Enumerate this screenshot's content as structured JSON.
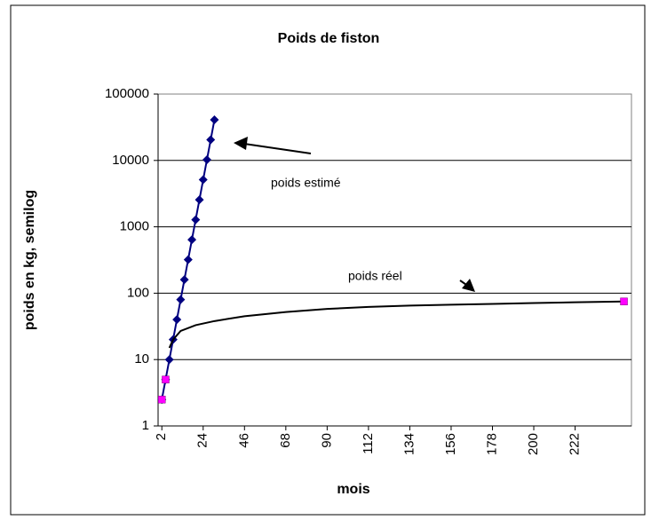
{
  "chart_data": {
    "type": "line",
    "title": "Poids de fiston",
    "x_label": "mois",
    "y_label": "poids en kg, semilog",
    "annotations": [
      "poids estimé",
      "poids réel"
    ],
    "log_y": true,
    "grid": true,
    "xlim": [
      0,
      252
    ],
    "xticks": [
      2,
      24,
      46,
      68,
      90,
      112,
      134,
      156,
      178,
      200,
      222
    ],
    "ylim": [
      1,
      100000
    ],
    "yticks": [
      1,
      10,
      100,
      1000,
      10000,
      100000
    ],
    "series": [
      {
        "color": "#000080",
        "marker": "diamond",
        "x": [
          2,
          4,
          6,
          8,
          10,
          12,
          14,
          16,
          18,
          20,
          22,
          24,
          26,
          28,
          30
        ],
        "values": [
          2.5,
          5,
          10,
          20,
          40,
          80,
          160,
          320,
          640,
          1280,
          2560,
          5120,
          10240,
          20480,
          40960
        ]
      },
      {
        "color": "#000000",
        "marker": "none",
        "x": [
          6,
          8,
          12,
          20,
          30,
          46,
          68,
          90,
          112,
          134,
          156,
          178,
          200,
          222,
          248
        ],
        "values": [
          15,
          20,
          27,
          33,
          38,
          45,
          52,
          58,
          62,
          65,
          67,
          69,
          71,
          73,
          75
        ]
      },
      {
        "color": "#ff00ff",
        "marker": "square",
        "line": false,
        "x": [
          2,
          4,
          248
        ],
        "values": [
          2.5,
          5,
          75
        ]
      }
    ]
  }
}
